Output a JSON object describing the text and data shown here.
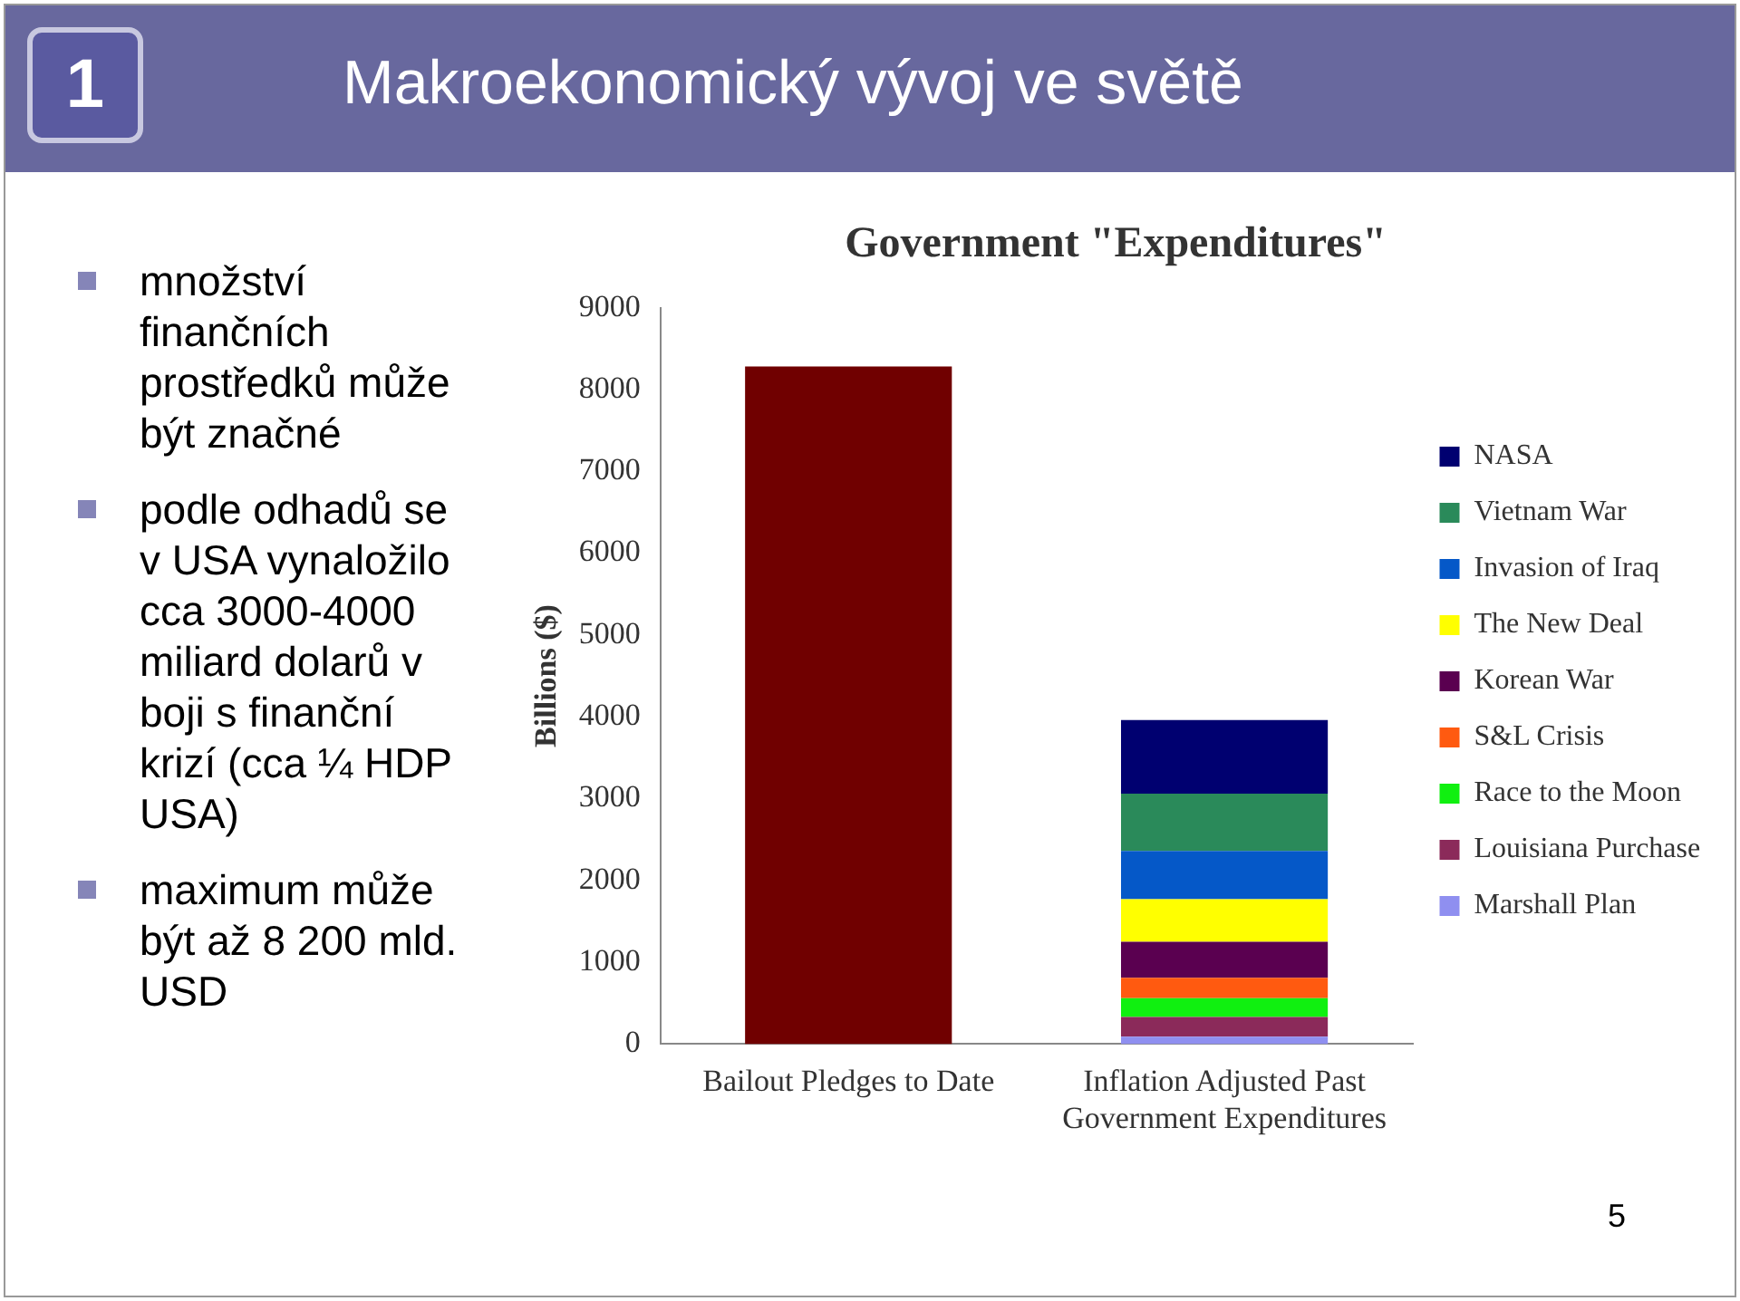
{
  "chart_data": {
    "type": "bar",
    "title": "Government \"Expenditures\"",
    "ylabel": "Billions ($)",
    "categories": [
      "Bailout Pledges to Date",
      "Inflation Adjusted Past Government Expenditures"
    ],
    "stacked": true,
    "ylim": [
      0,
      9000
    ],
    "yticks": [
      0,
      1000,
      2000,
      3000,
      4000,
      5000,
      6000,
      7000,
      8000,
      9000
    ],
    "grid": false,
    "legend": "right",
    "series": [
      {
        "color": "#700000",
        "values": [
          8280,
          null
        ]
      },
      {
        "name": "Marshall Plan",
        "color": "#8f8ff0",
        "values": [
          null,
          90
        ]
      },
      {
        "name": "Louisiana Purchase",
        "color": "#8b2a5a",
        "values": [
          null,
          240
        ]
      },
      {
        "name": "Race to the Moon",
        "color": "#10f010",
        "values": [
          null,
          230
        ]
      },
      {
        "name": "S&L Crisis",
        "color": "#ff5a10",
        "values": [
          null,
          250
        ]
      },
      {
        "name": "Korean War",
        "color": "#5a0050",
        "values": [
          null,
          440
        ]
      },
      {
        "name": "The New Deal",
        "color": "#ffff00",
        "values": [
          null,
          520
        ]
      },
      {
        "name": "Invasion of Iraq",
        "color": "#0558c8",
        "values": [
          null,
          590
        ]
      },
      {
        "name": "Vietnam War",
        "color": "#2a8a5a",
        "values": [
          null,
          700
        ]
      },
      {
        "name": "NASA",
        "color": "#000070",
        "values": [
          null,
          900
        ]
      }
    ],
    "annotations": [
      "1",
      "Makroekonomický vývoj ve světě",
      "množství finančních prostředků může být značné",
      "podle odhadů se v USA vynaložilo cca 3000-4000 miliard dolarů v boji s finanční krizí (cca ¼ HDP USA)",
      "maximum může být až 8 200 mld. USD",
      "5"
    ]
  }
}
